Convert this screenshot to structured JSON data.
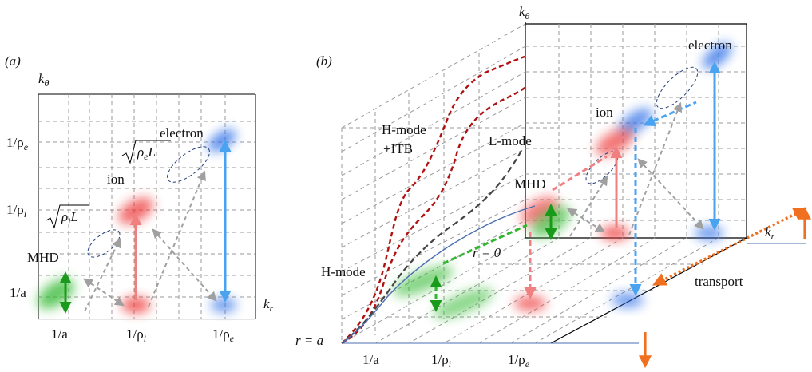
{
  "panel_a": {
    "label": "(a)",
    "axis_y": "k",
    "axis_y_sub": "θ",
    "axis_x": "k",
    "axis_x_sub": "r",
    "y_ticks": [
      "1/ρ",
      "1/ρ",
      "1/a"
    ],
    "y_tick_subs": [
      "e",
      "i",
      ""
    ],
    "x_ticks": [
      "1/a",
      "1/ρ",
      "1/ρ"
    ],
    "x_tick_subs": [
      "",
      "i",
      "e"
    ],
    "labels": {
      "electron": "electron",
      "ion": "ion",
      "mhd": "MHD",
      "sqrt_e_rho": "ρ",
      "sqrt_e_sub": "e",
      "sqrt_e_L": "L",
      "sqrt_i_rho": "ρ",
      "sqrt_i_sub": "i",
      "sqrt_i_L": "L"
    }
  },
  "panel_b": {
    "label": "(b)",
    "axis_y": "k",
    "axis_y_sub": "θ",
    "axis_x": "k",
    "axis_x_sub": "r",
    "x_ticks": [
      "1/a",
      "1/ρ",
      "1/ρ"
    ],
    "x_tick_subs": [
      "",
      "i",
      "e"
    ],
    "labels": {
      "electron": "electron",
      "ion": "ion",
      "mhd": "MHD",
      "hmode_itb_1": "H-mode",
      "hmode_itb_2": "+ITB",
      "lmode": "L-mode",
      "hmode": "H-mode",
      "r0": "r = 0",
      "ra": "r = a",
      "transport": "transport"
    }
  },
  "colors": {
    "ion": "#ee3b3b",
    "electron": "#2f6fe8",
    "mhd": "#2fb82f",
    "arrow_ion": "#f08080",
    "arrow_electron": "#4aa3f0",
    "arrow_mhd": "#1a9a1a",
    "arrow_gray": "#a0a0a0",
    "curve_dark_red": "#b01010",
    "curve_black": "#444444",
    "curve_blue": "#4a6fb0",
    "transport": "#f07020"
  }
}
